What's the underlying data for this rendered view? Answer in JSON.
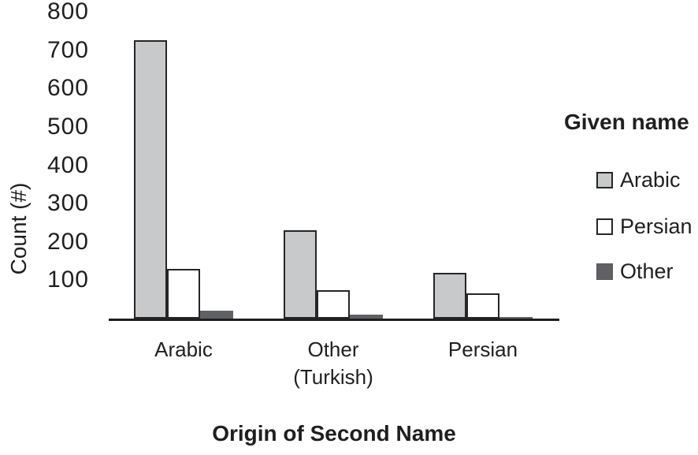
{
  "chart_data": {
    "type": "bar",
    "title": "",
    "xlabel": "Origin of Second Name",
    "ylabel": "Count (#)",
    "categories": [
      "Arabic",
      "Other (Turkish)",
      "Persian"
    ],
    "categories_display": [
      [
        "Arabic"
      ],
      [
        "Other",
        "(Turkish)"
      ],
      [
        "Persian"
      ]
    ],
    "legend_title": "Given name",
    "legend_position": "right",
    "grid": false,
    "ylim": [
      0,
      800
    ],
    "yticks": [
      800,
      700,
      600,
      500,
      400,
      300,
      200,
      100
    ],
    "series": [
      {
        "name": "Arabic",
        "fill": "#c8c9ca",
        "border": "#262626",
        "border_px": 2,
        "values": [
          725,
          230,
          120
        ]
      },
      {
        "name": "Persian",
        "fill": "#ffffff",
        "border": "#262626",
        "border_px": 2,
        "values": [
          130,
          75,
          65
        ]
      },
      {
        "name": "Other",
        "fill": "#606164",
        "border": "#57585a",
        "border_px": 0,
        "values": [
          20,
          10,
          5
        ]
      }
    ]
  },
  "colors": {
    "text": "#1f1f1f",
    "axis": "#1f1f1f",
    "background": "#ffffff"
  }
}
